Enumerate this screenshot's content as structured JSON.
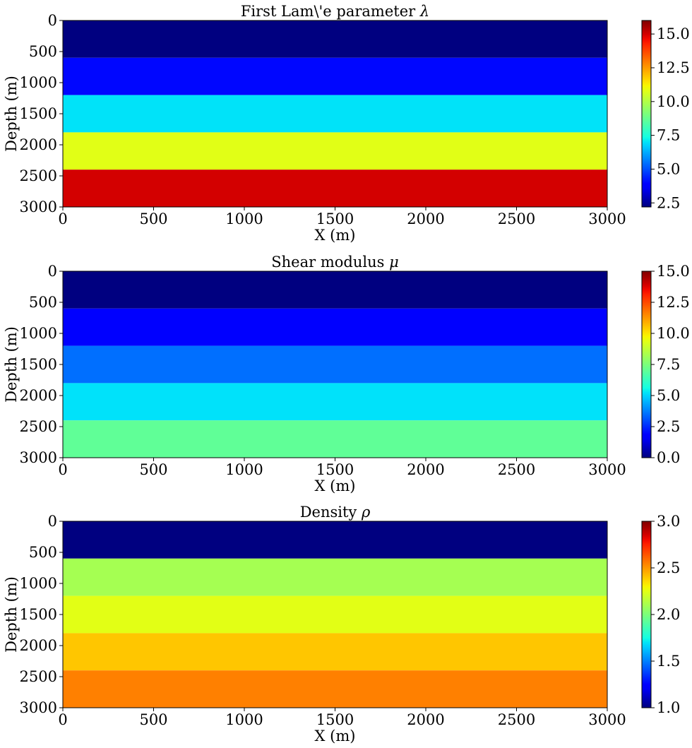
{
  "chart_data": [
    {
      "type": "heatmap",
      "title_text": "First Lam\\'e parameter ",
      "title_symbol": "λ",
      "xlabel": "X (m)",
      "ylabel": "Depth (m)",
      "xlim": [
        0,
        3000
      ],
      "ylim": [
        3000,
        0
      ],
      "xticks": [
        "0",
        "500",
        "1000",
        "1500",
        "2000",
        "2500",
        "3000"
      ],
      "yticks": [
        "0",
        "500",
        "1000",
        "1500",
        "2000",
        "2500",
        "3000"
      ],
      "colormap": "jet",
      "colorbar_range": [
        2.2,
        16.0
      ],
      "colorbar_ticks": [
        "2.5",
        "5.0",
        "7.5",
        "10.0",
        "12.5",
        "15.0"
      ],
      "colorbar_tick_values": [
        2.5,
        5.0,
        7.5,
        10.0,
        12.5,
        15.0
      ],
      "layers": [
        {
          "depth_top": 0,
          "depth_bottom": 600,
          "value": 2.2
        },
        {
          "depth_top": 600,
          "depth_bottom": 1200,
          "value": 4.0
        },
        {
          "depth_top": 1200,
          "depth_bottom": 1800,
          "value": 7.0
        },
        {
          "depth_top": 1800,
          "depth_bottom": 2400,
          "value": 10.8
        },
        {
          "depth_top": 2400,
          "depth_bottom": 3000,
          "value": 15.0
        }
      ]
    },
    {
      "type": "heatmap",
      "title_text": "Shear modulus ",
      "title_symbol": "μ",
      "xlabel": "X (m)",
      "ylabel": "Depth (m)",
      "xlim": [
        0,
        3000
      ],
      "ylim": [
        3000,
        0
      ],
      "xticks": [
        "0",
        "500",
        "1000",
        "1500",
        "2000",
        "2500",
        "3000"
      ],
      "yticks": [
        "0",
        "500",
        "1000",
        "1500",
        "2000",
        "2500",
        "3000"
      ],
      "colormap": "jet",
      "colorbar_range": [
        0.0,
        15.0
      ],
      "colorbar_ticks": [
        "0.0",
        "2.5",
        "5.0",
        "7.5",
        "10.0",
        "12.5",
        "15.0"
      ],
      "colorbar_tick_values": [
        0.0,
        2.5,
        5.0,
        7.5,
        10.0,
        12.5,
        15.0
      ],
      "layers": [
        {
          "depth_top": 0,
          "depth_bottom": 600,
          "value": 0.0
        },
        {
          "depth_top": 600,
          "depth_bottom": 1200,
          "value": 1.8
        },
        {
          "depth_top": 1200,
          "depth_bottom": 1800,
          "value": 3.5
        },
        {
          "depth_top": 1800,
          "depth_bottom": 2400,
          "value": 5.2
        },
        {
          "depth_top": 2400,
          "depth_bottom": 3000,
          "value": 7.0
        }
      ]
    },
    {
      "type": "heatmap",
      "title_text": "Density ",
      "title_symbol": "ρ",
      "xlabel": "X (m)",
      "ylabel": "Depth (m)",
      "xlim": [
        0,
        3000
      ],
      "ylim": [
        3000,
        0
      ],
      "xticks": [
        "0",
        "500",
        "1000",
        "1500",
        "2000",
        "2500",
        "3000"
      ],
      "yticks": [
        "0",
        "500",
        "1000",
        "1500",
        "2000",
        "2500",
        "3000"
      ],
      "colormap": "jet",
      "colorbar_range": [
        1.0,
        3.0
      ],
      "colorbar_ticks": [
        "1.0",
        "1.5",
        "2.0",
        "2.5",
        "3.0"
      ],
      "colorbar_tick_values": [
        1.0,
        1.5,
        2.0,
        2.5,
        3.0
      ],
      "layers": [
        {
          "depth_top": 0,
          "depth_bottom": 600,
          "value": 1.0
        },
        {
          "depth_top": 600,
          "depth_bottom": 1200,
          "value": 2.1
        },
        {
          "depth_top": 1200,
          "depth_bottom": 1800,
          "value": 2.25
        },
        {
          "depth_top": 1800,
          "depth_bottom": 2400,
          "value": 2.4
        },
        {
          "depth_top": 2400,
          "depth_bottom": 3000,
          "value": 2.55
        }
      ]
    }
  ]
}
